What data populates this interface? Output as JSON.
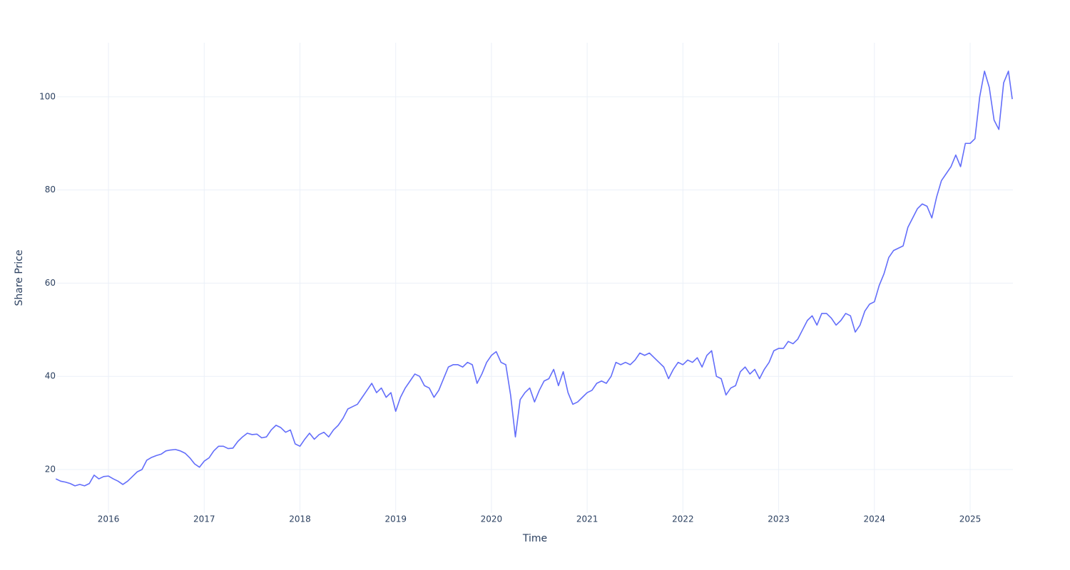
{
  "chart_data": {
    "type": "line",
    "x_label": "Time",
    "y_label": "Share Price",
    "x": [
      2015.45,
      2015.5,
      2015.55,
      2015.6,
      2015.65,
      2015.7,
      2015.75,
      2015.8,
      2015.85,
      2015.9,
      2015.95,
      2016.0,
      2016.05,
      2016.1,
      2016.15,
      2016.2,
      2016.25,
      2016.3,
      2016.35,
      2016.4,
      2016.45,
      2016.5,
      2016.55,
      2016.6,
      2016.65,
      2016.7,
      2016.75,
      2016.8,
      2016.85,
      2016.9,
      2016.95,
      2017.0,
      2017.05,
      2017.1,
      2017.15,
      2017.2,
      2017.25,
      2017.3,
      2017.35,
      2017.4,
      2017.45,
      2017.5,
      2017.55,
      2017.6,
      2017.65,
      2017.7,
      2017.75,
      2017.8,
      2017.85,
      2017.9,
      2017.95,
      2018.0,
      2018.05,
      2018.1,
      2018.15,
      2018.2,
      2018.25,
      2018.3,
      2018.35,
      2018.4,
      2018.45,
      2018.5,
      2018.55,
      2018.6,
      2018.65,
      2018.7,
      2018.75,
      2018.8,
      2018.85,
      2018.9,
      2018.95,
      2019.0,
      2019.05,
      2019.1,
      2019.15,
      2019.2,
      2019.25,
      2019.3,
      2019.35,
      2019.4,
      2019.45,
      2019.5,
      2019.55,
      2019.6,
      2019.65,
      2019.7,
      2019.75,
      2019.8,
      2019.85,
      2019.9,
      2019.95,
      2020.0,
      2020.05,
      2020.1,
      2020.15,
      2020.2,
      2020.25,
      2020.3,
      2020.35,
      2020.4,
      2020.45,
      2020.5,
      2020.55,
      2020.6,
      2020.65,
      2020.7,
      2020.75,
      2020.8,
      2020.85,
      2020.9,
      2020.95,
      2021.0,
      2021.05,
      2021.1,
      2021.15,
      2021.2,
      2021.25,
      2021.3,
      2021.35,
      2021.4,
      2021.45,
      2021.5,
      2021.55,
      2021.6,
      2021.65,
      2021.7,
      2021.75,
      2021.8,
      2021.85,
      2021.9,
      2021.95,
      2022.0,
      2022.05,
      2022.1,
      2022.15,
      2022.2,
      2022.25,
      2022.3,
      2022.35,
      2022.4,
      2022.45,
      2022.5,
      2022.55,
      2022.6,
      2022.65,
      2022.7,
      2022.75,
      2022.8,
      2022.85,
      2022.9,
      2022.95,
      2023.0,
      2023.05,
      2023.1,
      2023.15,
      2023.2,
      2023.25,
      2023.3,
      2023.35,
      2023.4,
      2023.45,
      2023.5,
      2023.55,
      2023.6,
      2023.65,
      2023.7,
      2023.75,
      2023.8,
      2023.85,
      2023.9,
      2023.95,
      2024.0,
      2024.05,
      2024.1,
      2024.15,
      2024.2,
      2024.25,
      2024.3,
      2024.35,
      2024.4,
      2024.45,
      2024.5,
      2024.55,
      2024.6,
      2024.65,
      2024.7,
      2024.75,
      2024.8,
      2024.85,
      2024.9,
      2024.95,
      2025.0,
      2025.05,
      2025.1,
      2025.15,
      2025.2,
      2025.25,
      2025.3,
      2025.35,
      2025.4,
      2025.44
    ],
    "series": [
      {
        "name": "Share Price",
        "color": "#636efa",
        "values": [
          18,
          17.5,
          17.3,
          17,
          16.5,
          16.8,
          16.5,
          17,
          18.8,
          18,
          18.5,
          18.6,
          18,
          17.5,
          16.8,
          17.5,
          18.5,
          19.5,
          20,
          22,
          22.6,
          23,
          23.3,
          24,
          24.2,
          24.3,
          24,
          23.5,
          22.5,
          21.2,
          20.5,
          21.8,
          22.5,
          24,
          25,
          25,
          24.5,
          24.6,
          26,
          27,
          27.8,
          27.5,
          27.6,
          26.8,
          27,
          28.5,
          29.5,
          29,
          28,
          28.5,
          25.5,
          25,
          26.5,
          27.8,
          26.5,
          27.5,
          28,
          27,
          28.5,
          29.5,
          31,
          33,
          33.5,
          34,
          35.5,
          37,
          38.5,
          36.5,
          37.5,
          35.5,
          36.5,
          32.5,
          35.5,
          37.5,
          39,
          40.5,
          40,
          38,
          37.5,
          35.5,
          37,
          39.5,
          42,
          42.5,
          42.5,
          42,
          43,
          42.5,
          38.5,
          40.5,
          43,
          44.5,
          45.3,
          43,
          42.5,
          36,
          27,
          35,
          36.5,
          37.5,
          34.5,
          37,
          39,
          39.5,
          41.5,
          38,
          41,
          36.5,
          34,
          34.5,
          35.5,
          36.5,
          37,
          38.5,
          39,
          38.5,
          40,
          43,
          42.5,
          43,
          42.5,
          43.5,
          45,
          44.5,
          45,
          44,
          43,
          42,
          39.5,
          41.5,
          43,
          42.5,
          43.5,
          43,
          44,
          42,
          44.5,
          45.5,
          40,
          39.5,
          36,
          37.5,
          38,
          41,
          42,
          40.5,
          41.5,
          39.5,
          41.5,
          43,
          45.5,
          46,
          46,
          47.5,
          47,
          48,
          50,
          52,
          53,
          51,
          53.5,
          53.5,
          52.5,
          51,
          52,
          53.5,
          53,
          49.5,
          51,
          54,
          55.5,
          56,
          59.5,
          62,
          65.5,
          67,
          67.5,
          68,
          72,
          74,
          76,
          77,
          76.5,
          74,
          78.5,
          82,
          83.5,
          85,
          87.5,
          85,
          90,
          90,
          91,
          100,
          105.5,
          102,
          95,
          93,
          103,
          105.5,
          99.5
        ]
      }
    ],
    "xlim": [
      2015.463,
      2025.447
    ],
    "xticks": [
      2016,
      2017,
      2018,
      2019,
      2020,
      2021,
      2022,
      2023,
      2024,
      2025
    ],
    "ylim": [
      10.67,
      111.6
    ],
    "yticks": [
      20,
      40,
      60,
      80,
      100
    ],
    "grid": true
  }
}
